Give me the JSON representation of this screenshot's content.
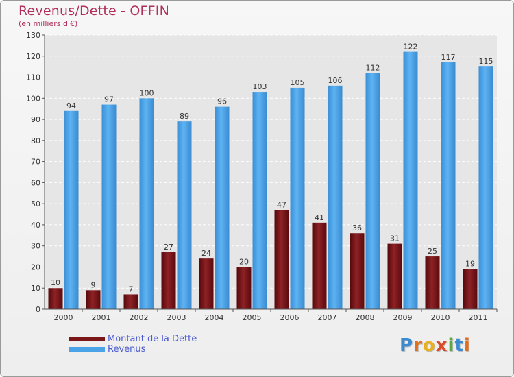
{
  "title": "Revenus/Dette - OFFIN",
  "subtitle": "(en milliers d'€)",
  "brand": "Proxiti",
  "colors": {
    "dette": "#7a1518",
    "revenus": "#4aa3e6",
    "title": "#b0305a",
    "legend_text": "#4a5ad0"
  },
  "chart_data": {
    "type": "bar",
    "categories": [
      "2000",
      "2001",
      "2002",
      "2003",
      "2004",
      "2005",
      "2006",
      "2007",
      "2008",
      "2009",
      "2010",
      "2011"
    ],
    "series": [
      {
        "name": "Montant de la Dette",
        "values": [
          10,
          9,
          7,
          27,
          24,
          20,
          47,
          41,
          36,
          31,
          25,
          19
        ]
      },
      {
        "name": "Revenus",
        "values": [
          94,
          97,
          100,
          89,
          96,
          103,
          105,
          106,
          112,
          122,
          117,
          115
        ]
      }
    ],
    "title": "Revenus/Dette - OFFIN",
    "ylabel": "(en milliers d'€)",
    "ylim": [
      0,
      130
    ],
    "yticks": [
      0,
      10,
      20,
      30,
      40,
      50,
      60,
      70,
      80,
      90,
      100,
      110,
      120,
      130
    ],
    "grid": true,
    "legend_position": "bottom-left"
  }
}
